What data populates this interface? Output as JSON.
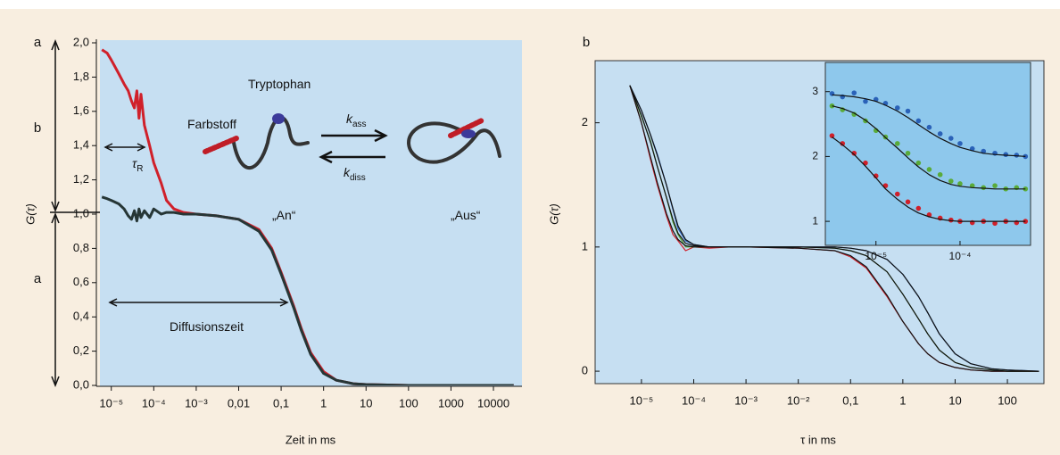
{
  "chart_data": [
    {
      "type": "line",
      "panel_label": "a",
      "ylabel": "G(τ)",
      "xlabel": "Zeit in ms",
      "xscale": "log",
      "xlim": [
        5.4e-06,
        47000
      ],
      "ylim": [
        0,
        2
      ],
      "xticks": [
        {
          "value": 1e-05,
          "label": "10⁻⁵"
        },
        {
          "value": 0.0001,
          "label": "10⁻⁴"
        },
        {
          "value": 0.001,
          "label": "10⁻³"
        },
        {
          "value": 0.01,
          "label": "0,01"
        },
        {
          "value": 0.1,
          "label": "0,1"
        },
        1,
        10,
        100,
        1000,
        10000
      ],
      "yticks": [
        {
          "value": 0,
          "label": "0,0"
        },
        {
          "value": 0.2,
          "label": "0,2"
        },
        {
          "value": 0.4,
          "label": "0,4"
        },
        {
          "value": 0.6,
          "label": "0,6"
        },
        {
          "value": 0.8,
          "label": "0,8"
        },
        {
          "value": 1,
          "label": "1,0"
        },
        {
          "value": 1.2,
          "label": "1,2"
        },
        {
          "value": 1.4,
          "label": "1,4"
        },
        {
          "value": 1.6,
          "label": "1,6"
        },
        {
          "value": 1.8,
          "label": "1,8"
        },
        {
          "value": 2,
          "label": "2,0"
        }
      ],
      "x": [
        6e-06,
        8e-06,
        1e-05,
        1.5e-05,
        2e-05,
        2.5e-05,
        3e-05,
        3.5e-05,
        4e-05,
        4.5e-05,
        5e-05,
        6e-05,
        8e-05,
        0.0001,
        0.00015,
        0.0002,
        0.0003,
        0.0005,
        0.001,
        0.003,
        0.01,
        0.03,
        0.06,
        0.1,
        0.2,
        0.3,
        0.5,
        1,
        2,
        5,
        10,
        100,
        1000,
        30000
      ],
      "series": [
        {
          "color": "#d0202a",
          "values": [
            1.96,
            1.94,
            1.9,
            1.82,
            1.76,
            1.72,
            1.66,
            1.62,
            1.72,
            1.56,
            1.7,
            1.52,
            1.4,
            1.3,
            1.18,
            1.08,
            1.03,
            1.01,
            1.0,
            0.99,
            0.97,
            0.91,
            0.8,
            0.66,
            0.46,
            0.33,
            0.19,
            0.08,
            0.03,
            0.01,
            0.005,
            0,
            0,
            0
          ]
        },
        {
          "color": "#263636",
          "values": [
            1.1,
            1.09,
            1.08,
            1.06,
            1.03,
            0.99,
            0.97,
            1.02,
            0.96,
            1.03,
            0.98,
            1.02,
            0.98,
            1.03,
            1.0,
            1.01,
            1.01,
            1.0,
            1.0,
            0.99,
            0.97,
            0.9,
            0.79,
            0.65,
            0.45,
            0.32,
            0.18,
            0.07,
            0.03,
            0.01,
            0.005,
            0,
            0,
            0
          ]
        }
      ],
      "side_labels": [
        "b",
        "a"
      ],
      "annotations": [
        {
          "text": "Tryptophan"
        },
        {
          "text": "Farbstoff"
        },
        {
          "text": "τ",
          "sub": "R"
        },
        {
          "text": "k",
          "sub": "ass"
        },
        {
          "text": "k",
          "sub": "diss"
        },
        {
          "text": "„An“"
        },
        {
          "text": "„Aus“"
        },
        {
          "text": "Diffusionszeit"
        }
      ]
    },
    {
      "type": "line",
      "panel_label": "b",
      "ylabel": "G(τ)",
      "xlabel": "τ in ms",
      "xscale": "log",
      "xlim": [
        1.3e-06,
        500
      ],
      "ylim": [
        -0.1,
        2.5
      ],
      "xticks": [
        {
          "value": 1e-05,
          "label": "10⁻⁵"
        },
        {
          "value": 0.0001,
          "label": "10⁻⁴"
        },
        {
          "value": 0.001,
          "label": "10⁻³"
        },
        {
          "value": 0.01,
          "label": "10⁻²"
        },
        {
          "value": 0.1,
          "label": "0,1"
        },
        1,
        10,
        100
      ],
      "yticks": [
        0,
        1,
        2
      ],
      "x": [
        6e-06,
        1e-05,
        1.5e-05,
        2e-05,
        3e-05,
        4e-05,
        5e-05,
        7e-05,
        0.0001,
        0.0002,
        0.0005,
        0.001,
        0.01,
        0.05,
        0.1,
        0.2,
        0.5,
        1,
        2,
        3,
        5,
        10,
        20,
        50,
        100,
        400
      ],
      "series": [
        {
          "color": "#d0202a",
          "values": [
            2.3,
            2.0,
            1.7,
            1.5,
            1.25,
            1.1,
            1.05,
            0.97,
            1.0,
            0.99,
            1.0,
            1.0,
            0.99,
            0.97,
            0.92,
            0.83,
            0.6,
            0.4,
            0.22,
            0.14,
            0.07,
            0.03,
            0.01,
            0,
            0,
            0
          ]
        },
        {
          "color": "#5aab3a",
          "values": [
            2.3,
            2.05,
            1.85,
            1.65,
            1.4,
            1.2,
            1.1,
            1.0,
            1.0,
            1.0,
            1.0,
            1.0,
            1.0,
            0.99,
            0.97,
            0.93,
            0.8,
            0.62,
            0.42,
            0.3,
            0.17,
            0.07,
            0.03,
            0.01,
            0,
            0
          ]
        },
        {
          "color": "#2a62b8",
          "values": [
            2.3,
            2.1,
            1.9,
            1.75,
            1.5,
            1.3,
            1.15,
            1.05,
            1.02,
            1.0,
            1.0,
            1.0,
            1.0,
            1.0,
            0.99,
            0.97,
            0.9,
            0.78,
            0.6,
            0.47,
            0.3,
            0.14,
            0.06,
            0.02,
            0.01,
            0
          ]
        },
        {
          "color": "#111111",
          "values": [
            2.3,
            2.0,
            1.72,
            1.52,
            1.27,
            1.13,
            1.06,
            1.01,
            1.0,
            1.0,
            1.0,
            1.0,
            0.99,
            0.97,
            0.93,
            0.84,
            0.61,
            0.4,
            0.22,
            0.14,
            0.07,
            0.03,
            0.01,
            0,
            0,
            0
          ]
        },
        {
          "color": "#111111",
          "values": [
            2.3,
            2.06,
            1.84,
            1.65,
            1.4,
            1.22,
            1.11,
            1.03,
            1.01,
            1.0,
            1.0,
            1.0,
            1.0,
            0.99,
            0.97,
            0.93,
            0.8,
            0.62,
            0.42,
            0.3,
            0.17,
            0.07,
            0.03,
            0.01,
            0,
            0
          ]
        },
        {
          "color": "#111111",
          "values": [
            2.3,
            2.1,
            1.9,
            1.74,
            1.5,
            1.31,
            1.17,
            1.06,
            1.02,
            1.0,
            1.0,
            1.0,
            1.0,
            1.0,
            0.99,
            0.97,
            0.9,
            0.78,
            0.6,
            0.47,
            0.3,
            0.14,
            0.06,
            0.02,
            0.01,
            0
          ]
        }
      ]
    },
    {
      "type": "line",
      "xscale": "log",
      "xlim": [
        2.5e-06,
        0.00069
      ],
      "ylim": [
        0.63,
        3.45
      ],
      "xticks": [
        {
          "value": 1e-05,
          "label": "10⁻⁵"
        },
        {
          "value": 0.0001,
          "label": "10⁻⁴"
        }
      ],
      "yticks": [
        1,
        2,
        3
      ],
      "x": [
        3e-06,
        4e-06,
        5.5e-06,
        7.5e-06,
        1e-05,
        1.3e-05,
        1.8e-05,
        2.4e-05,
        3.2e-05,
        4.3e-05,
        5.8e-05,
        7.8e-05,
        0.0001,
        0.00014,
        0.00019,
        0.00026,
        0.00035,
        0.00047,
        0.0006
      ],
      "series": [
        {
          "color": "#2a62b8",
          "markers": true,
          "values": [
            2.97,
            2.92,
            2.98,
            2.85,
            2.88,
            2.82,
            2.75,
            2.7,
            2.55,
            2.45,
            2.35,
            2.28,
            2.2,
            2.12,
            2.08,
            2.05,
            2.03,
            2.02,
            2.0
          ]
        },
        {
          "color": "#5aab3a",
          "markers": true,
          "values": [
            2.78,
            2.72,
            2.65,
            2.55,
            2.4,
            2.3,
            2.2,
            2.05,
            1.9,
            1.8,
            1.72,
            1.62,
            1.58,
            1.55,
            1.52,
            1.55,
            1.5,
            1.52,
            1.5
          ]
        },
        {
          "color": "#d0202a",
          "markers": true,
          "values": [
            2.32,
            2.2,
            2.05,
            1.9,
            1.7,
            1.55,
            1.42,
            1.3,
            1.2,
            1.1,
            1.05,
            1.02,
            1.0,
            0.98,
            1.0,
            0.97,
            1.0,
            0.98,
            1.0
          ]
        },
        {
          "color": "#111111",
          "values": [
            2.95,
            2.94,
            2.92,
            2.89,
            2.85,
            2.79,
            2.7,
            2.6,
            2.49,
            2.38,
            2.28,
            2.2,
            2.14,
            2.09,
            2.05,
            2.03,
            2.02,
            2.01,
            2.0
          ]
        },
        {
          "color": "#111111",
          "values": [
            2.78,
            2.74,
            2.67,
            2.56,
            2.43,
            2.29,
            2.13,
            1.98,
            1.84,
            1.72,
            1.63,
            1.57,
            1.54,
            1.52,
            1.51,
            1.5,
            1.5,
            1.5,
            1.5
          ]
        },
        {
          "color": "#111111",
          "values": [
            2.3,
            2.18,
            2.03,
            1.85,
            1.67,
            1.5,
            1.34,
            1.22,
            1.13,
            1.07,
            1.03,
            1.01,
            1.0,
            1.0,
            1.0,
            1.0,
            1.0,
            1.0,
            1.0
          ]
        }
      ]
    }
  ]
}
